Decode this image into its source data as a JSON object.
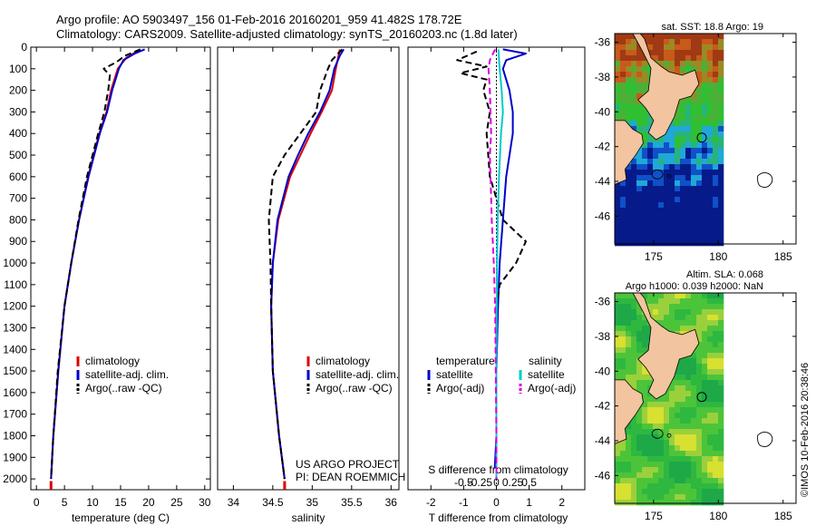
{
  "header": {
    "line1": "Argo profile: AO 5903497_156 01-Feb-2016 20160201_959 41.482S 178.72E",
    "line2": "Climatology: CARS2009. Satellite-adjusted climatology: synTS_20160203.nc (1.8d later)"
  },
  "colors": {
    "climatology": "#dd0000",
    "satellite": "#0000cc",
    "argo": "#000000",
    "salinity_satellite": "#00cccc",
    "salinity_argo": "#dd00dd",
    "land": "#f2c4a0"
  },
  "chart_data": [
    {
      "type": "line",
      "id": "temperature",
      "xlabel": "temperature (deg C)",
      "xlim": [
        -1,
        31
      ],
      "ylim": [
        2050,
        0
      ],
      "xticks": [
        0,
        5,
        10,
        15,
        20,
        25,
        30
      ],
      "yticks": [
        0,
        100,
        200,
        300,
        400,
        500,
        600,
        700,
        800,
        900,
        1000,
        1100,
        1200,
        1300,
        1400,
        1500,
        1600,
        1700,
        1800,
        1900,
        2000
      ],
      "legend": [
        "climatology",
        "satellite-adj. clim.",
        "Argo(..raw -QC)"
      ],
      "series": [
        {
          "name": "climatology",
          "depth": [
            10,
            50,
            100,
            200,
            300,
            400,
            600,
            800,
            1000,
            1200,
            1500,
            1800,
            2000
          ],
          "values": [
            18.5,
            16,
            14.5,
            13.3,
            12.5,
            11.2,
            9.2,
            7.6,
            6.2,
            5,
            3.9,
            3,
            2.6
          ]
        },
        {
          "name": "satellite-adj. clim.",
          "depth": [
            10,
            30,
            60,
            100,
            200,
            300,
            400,
            600,
            800,
            1000,
            1200,
            1500,
            1800,
            2000
          ],
          "values": [
            19.3,
            17.5,
            15.5,
            14.7,
            13.5,
            12.6,
            11.3,
            9.3,
            7.6,
            6.2,
            5,
            3.9,
            3,
            2.6
          ]
        },
        {
          "name": "Argo(..raw -QC)",
          "depth": [
            10,
            40,
            70,
            100,
            130,
            200,
            300,
            400,
            600,
            800,
            1000,
            1200,
            1500,
            1800,
            2000
          ],
          "values": [
            18.5,
            15.8,
            14.2,
            12,
            13.1,
            12.8,
            12.1,
            11,
            9,
            7.5,
            6.2,
            5,
            3.8,
            3,
            2.6
          ]
        }
      ],
      "bottom_marker": 2.6
    },
    {
      "type": "line",
      "id": "salinity",
      "xlabel": "salinity",
      "xlim": [
        33.8,
        36.1
      ],
      "ylim": [
        2050,
        0
      ],
      "xticks": [
        34,
        34.5,
        35,
        35.5,
        36
      ],
      "xtick_labels": [
        "34",
        "34.5",
        "35",
        "35.5",
        "36"
      ],
      "legend": [
        "climatology",
        "satellite-adj. clim.",
        "Argo(..raw -QC)"
      ],
      "series": [
        {
          "name": "climatology",
          "depth": [
            10,
            100,
            200,
            300,
            400,
            500,
            600,
            800,
            1000,
            1200,
            1500,
            1800,
            2000
          ],
          "values": [
            35.35,
            35.3,
            35.25,
            35.12,
            34.98,
            34.85,
            34.72,
            34.57,
            34.5,
            34.48,
            34.5,
            34.58,
            34.65
          ]
        },
        {
          "name": "satellite-adj. clim.",
          "depth": [
            10,
            40,
            100,
            200,
            300,
            400,
            500,
            600,
            800,
            1000,
            1200,
            1500,
            1800,
            2000
          ],
          "values": [
            35.4,
            35.35,
            35.28,
            35.22,
            35.1,
            34.95,
            34.82,
            34.7,
            34.56,
            34.5,
            34.48,
            34.5,
            34.58,
            34.65
          ]
        },
        {
          "name": "Argo(..raw -QC)",
          "depth": [
            10,
            60,
            100,
            150,
            200,
            300,
            400,
            500,
            600,
            800,
            1000,
            1200,
            1500,
            1800,
            2000
          ],
          "values": [
            35.38,
            35.25,
            35.2,
            35.15,
            35.1,
            35.05,
            34.85,
            34.65,
            34.5,
            34.45,
            34.47,
            34.48,
            34.5,
            34.58,
            34.65
          ]
        }
      ],
      "bottom_marker": 34.65,
      "annotation_line1": "US ARGO PROJECT",
      "annotation_line2": "PI: DEAN ROEMMICH"
    },
    {
      "type": "line",
      "id": "difference",
      "xlabel": "T difference from climatology",
      "xlabel_top": "S difference from climatology",
      "xlim": [
        -2.7,
        2.7
      ],
      "ylim": [
        2050,
        0
      ],
      "xticks": [
        -2,
        -1,
        0,
        1,
        2
      ],
      "s_ticks": [
        -0.5,
        -0.25,
        0,
        0.25,
        0.5
      ],
      "s_tick_labels": [
        "-0.5",
        "-0.25",
        "0",
        "0.25",
        "0.5"
      ],
      "legend_temperature_title": "temperature",
      "legend_salinity_title": "salinity",
      "legend_temperature": [
        "satellite",
        "Argo(-adj)"
      ],
      "legend_salinity": [
        "satellite",
        "Argo(-adj)"
      ],
      "series": [
        {
          "name": "temperature satellite",
          "depth": [
            10,
            30,
            60,
            100,
            150,
            200,
            300,
            400,
            600,
            800,
            1000,
            1200,
            1500,
            1800,
            1950
          ],
          "values": [
            0.2,
            0.9,
            0.3,
            0.2,
            0.3,
            0.4,
            0.5,
            0.5,
            0.3,
            0.2,
            0.1,
            0.05,
            0,
            0,
            -0.05
          ]
        },
        {
          "name": "temperature Argo(-adj)",
          "depth": [
            20,
            60,
            90,
            120,
            150,
            200,
            300,
            400,
            600,
            800,
            900,
            1000,
            1100,
            1200,
            1500,
            1800,
            1950
          ],
          "values": [
            -0.6,
            -1.2,
            -0.3,
            -1.1,
            -0.3,
            -0.4,
            -0.2,
            -0.3,
            -0.2,
            0.2,
            0.9,
            0.6,
            0.1,
            0,
            0,
            0,
            0
          ]
        },
        {
          "name": "salinity satellite",
          "depth": [
            10,
            100,
            200,
            300,
            400,
            600,
            800,
            1000,
            1200,
            1500,
            1800,
            2000
          ],
          "values": [
            0.03,
            0.05,
            0.08,
            0.1,
            0.07,
            0.04,
            0.02,
            0.01,
            0.005,
            0,
            0,
            0
          ]
        },
        {
          "name": "salinity Argo(-adj)",
          "depth": [
            10,
            60,
            100,
            200,
            300,
            400,
            500,
            600,
            800,
            1000,
            1200,
            1500,
            1800,
            2000
          ],
          "values": [
            -0.02,
            -0.1,
            -0.12,
            -0.1,
            -0.09,
            -0.08,
            -0.1,
            -0.09,
            -0.07,
            -0.04,
            -0.02,
            -0.01,
            0,
            0
          ]
        }
      ]
    }
  ],
  "map_sst": {
    "title": "sat. SST: 18.8 Argo: 19",
    "xticks": [
      175,
      180,
      185
    ],
    "yticks": [
      -36,
      -38,
      -40,
      -42,
      -44,
      -46
    ],
    "xlim": [
      172,
      186
    ],
    "ylim": [
      -47.6,
      -35.5
    ],
    "data_east_limit": 180,
    "argo_position": [
      178.72,
      -41.482
    ]
  },
  "map_sla": {
    "title_line1": "Altim. SLA: 0.068",
    "title_line2": "Argo h1000: 0.039 h2000: NaN",
    "xticks": [
      175,
      180,
      185
    ],
    "yticks": [
      -36,
      -38,
      -40,
      -42,
      -44,
      -46
    ],
    "xlim": [
      172,
      186
    ],
    "ylim": [
      -47.6,
      -35.5
    ],
    "data_east_limit": 180,
    "argo_position": [
      178.72,
      -41.482
    ]
  },
  "footer": "©IMOS 10-Feb-2016 20:38:46"
}
